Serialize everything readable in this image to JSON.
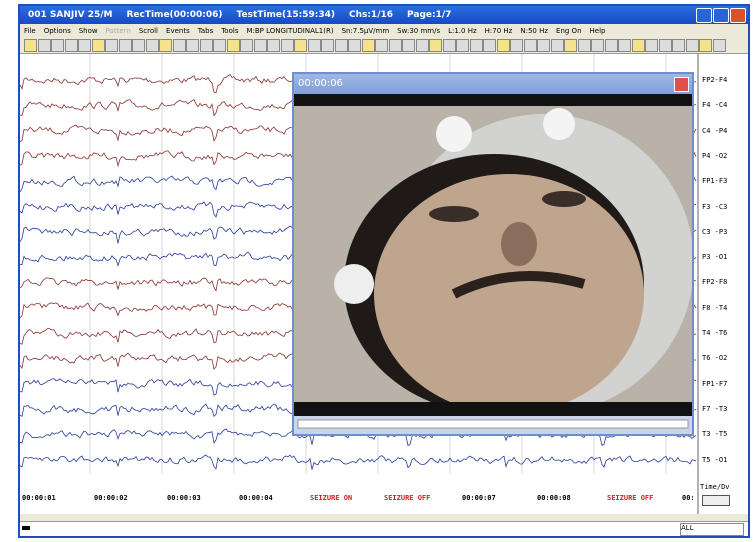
{
  "window": {
    "title_parts": [
      "001 SANJIV 25/M",
      "RecTime(00:00:06)",
      "TestTime(15:59:34)",
      "Chs:1/16",
      "Page:1/7"
    ]
  },
  "menu": [
    "File",
    "Options",
    "Show",
    "Pattern",
    "Scroll",
    "Events",
    "Tabs",
    "Tools",
    "M:BP LONGITUDINAL1(R)",
    "Sn:7.5µV/mm",
    "Sw:30 mm/s",
    "L:1.0 Hz",
    "H:70 Hz",
    "N:50 Hz",
    "Eng On",
    "Help"
  ],
  "channels": [
    "FP2-F4",
    "F4 -C4",
    "C4 -P4",
    "P4 -O2",
    "FP1-F3",
    "F3 -C3",
    "C3 -P3",
    "P3 -O1",
    "FP2-F8",
    "F8 -T4",
    "T4 -T6",
    "T6 -O2",
    "FP1-F7",
    "F7 -T3",
    "T3 -T5",
    "T5 -O1"
  ],
  "time_labels": [
    "00:00:01",
    "00:00:02",
    "00:00:03",
    "00:00:04",
    "SEIZURE ON",
    "SEIZURE OFF",
    "00:00:07",
    "00:00:08",
    "SEIZURE OFF",
    "00:"
  ],
  "time_div": "Time/Dv",
  "video": {
    "title": "00:00:06"
  },
  "status": {
    "filter": "ALL"
  }
}
